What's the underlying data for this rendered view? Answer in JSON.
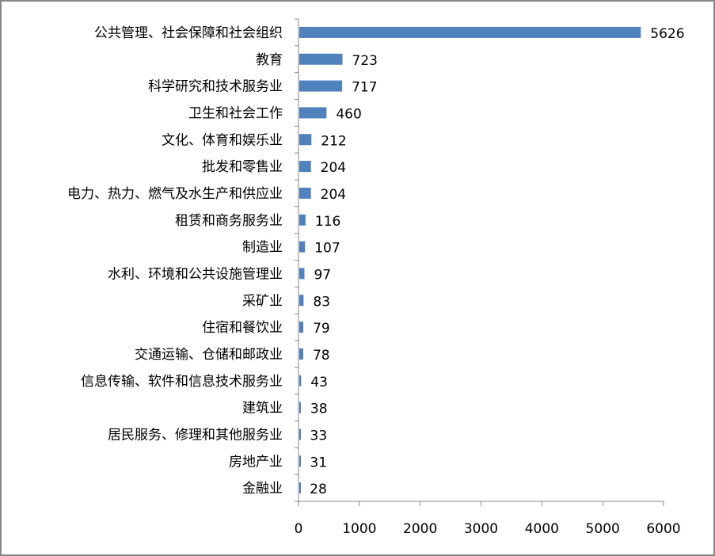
{
  "chart_data": {
    "type": "bar",
    "orientation": "horizontal",
    "categories": [
      "公共管理、社会保障和社会组织",
      "教育",
      "科学研究和技术服务业",
      "卫生和社会工作",
      "文化、体育和娱乐业",
      "批发和零售业",
      "电力、热力、燃气及水生产和供应业",
      "租赁和商务服务业",
      "制造业",
      "水利、环境和公共设施管理业",
      "采矿业",
      "住宿和餐饮业",
      "交通运输、仓储和邮政业",
      "信息传输、软件和信息技术服务业",
      "建筑业",
      "居民服务、修理和其他服务业",
      "房地产业",
      "金融业"
    ],
    "values": [
      5626,
      723,
      717,
      460,
      212,
      204,
      204,
      116,
      107,
      97,
      83,
      79,
      78,
      43,
      38,
      33,
      31,
      28
    ],
    "xlim": [
      0,
      6000
    ],
    "xticks": [
      "0",
      "1000",
      "2000",
      "3000",
      "4000",
      "5000",
      "6000"
    ],
    "grid": false,
    "legend": "none",
    "bar_color": "#4F81BD",
    "data_labels": true
  }
}
